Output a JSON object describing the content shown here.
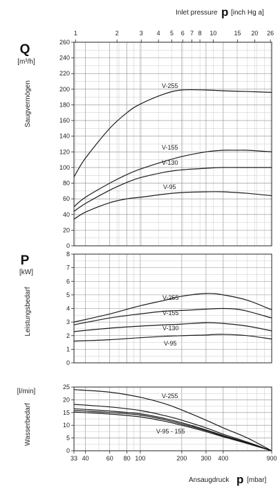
{
  "top_axis": {
    "label": "Inlet pressure",
    "symbol": "p",
    "unit": "[inch Hg a]",
    "ticks": [
      "1",
      "2",
      "3",
      "4",
      "5",
      "6",
      "7",
      "8",
      "10",
      "15",
      "20",
      "26"
    ]
  },
  "bottom_axis": {
    "label": "Ansaugdruck",
    "symbol": "p",
    "unit": "[mbar]",
    "ticks": [
      "33",
      "40",
      "60",
      "80",
      "100",
      "200",
      "300",
      "400",
      "900"
    ],
    "range": [
      33,
      900
    ],
    "scale": "log"
  },
  "chart_data": [
    {
      "type": "line",
      "symbol": "Q",
      "unit": "[m³/h]",
      "ylabel": "Saugvermögen",
      "ylim": [
        0,
        260
      ],
      "yticks": [
        0,
        20,
        40,
        60,
        80,
        100,
        120,
        140,
        160,
        180,
        200,
        220,
        240,
        260
      ],
      "series": [
        {
          "name": "V-255",
          "x": [
            33,
            40,
            60,
            80,
            100,
            150,
            200,
            300,
            400,
            600,
            900
          ],
          "y": [
            88,
            112,
            150,
            170,
            181,
            194,
            199,
            199,
            198,
            197,
            196
          ]
        },
        {
          "name": "V-155",
          "x": [
            33,
            40,
            60,
            80,
            100,
            150,
            200,
            300,
            400,
            500,
            600,
            900
          ],
          "y": [
            50,
            62,
            80,
            91,
            98,
            108,
            114,
            120,
            122,
            122,
            122,
            120
          ]
        },
        {
          "name": "V-130",
          "x": [
            33,
            40,
            60,
            80,
            100,
            150,
            200,
            300,
            400,
            600,
            900
          ],
          "y": [
            44,
            54,
            71,
            81,
            87,
            94,
            97,
            99,
            100,
            100,
            100
          ]
        },
        {
          "name": "V-95",
          "x": [
            33,
            40,
            60,
            80,
            100,
            150,
            200,
            300,
            400,
            600,
            900
          ],
          "y": [
            34,
            43,
            55,
            60,
            62,
            66,
            68,
            69,
            69,
            67,
            64
          ]
        }
      ]
    },
    {
      "type": "line",
      "symbol": "P",
      "unit": "[kW]",
      "ylabel": "Leistungsbedarf",
      "ylim": [
        0,
        8
      ],
      "yticks": [
        0,
        1,
        2,
        3,
        4,
        5,
        6,
        7,
        8
      ],
      "series": [
        {
          "name": "V-255",
          "x": [
            33,
            60,
            100,
            150,
            200,
            300,
            400,
            600,
            900
          ],
          "y": [
            3.0,
            3.6,
            4.2,
            4.6,
            4.9,
            5.1,
            5.0,
            4.6,
            3.9
          ]
        },
        {
          "name": "V-155",
          "x": [
            33,
            60,
            100,
            150,
            200,
            300,
            400,
            500,
            600,
            900
          ],
          "y": [
            2.8,
            3.3,
            3.6,
            3.8,
            3.85,
            3.95,
            4.0,
            3.95,
            3.8,
            3.3
          ]
        },
        {
          "name": "V-130",
          "x": [
            33,
            60,
            100,
            150,
            200,
            300,
            400,
            600,
            900
          ],
          "y": [
            2.3,
            2.55,
            2.7,
            2.8,
            2.85,
            2.95,
            2.9,
            2.7,
            2.35
          ]
        },
        {
          "name": "V-95",
          "x": [
            33,
            60,
            100,
            150,
            200,
            300,
            400,
            600,
            900
          ],
          "y": [
            1.6,
            1.7,
            1.85,
            1.95,
            2.0,
            2.05,
            2.1,
            2.0,
            1.75
          ]
        }
      ]
    },
    {
      "type": "line",
      "symbol": "",
      "unit": "[l/min]",
      "ylabel": "Wasserbedarf",
      "ylim": [
        0,
        25
      ],
      "yticks": [
        0,
        5,
        10,
        15,
        20,
        25
      ],
      "series": [
        {
          "name": "V-255",
          "x": [
            33,
            60,
            100,
            150,
            200,
            300,
            400,
            600,
            900
          ],
          "y": [
            24,
            23,
            21,
            18.5,
            16,
            12,
            9,
            5,
            0
          ]
        },
        {
          "name": "",
          "x": [
            33,
            60,
            100,
            150,
            200,
            300,
            400,
            600,
            900
          ],
          "y": [
            18.2,
            17.2,
            15.8,
            13.8,
            12,
            9,
            6.5,
            3.4,
            0
          ]
        },
        {
          "name": "",
          "x": [
            33,
            60,
            100,
            150,
            200,
            300,
            400,
            600,
            900
          ],
          "y": [
            16.5,
            15.6,
            14.5,
            12.7,
            11,
            8.2,
            6,
            3.1,
            0
          ]
        },
        {
          "name": "",
          "x": [
            33,
            60,
            100,
            150,
            200,
            300,
            400,
            600,
            900
          ],
          "y": [
            15.8,
            15,
            14,
            12.2,
            10.5,
            7.9,
            5.8,
            3,
            0
          ]
        },
        {
          "name": "",
          "x": [
            33,
            60,
            100,
            150,
            200,
            300,
            400,
            600,
            900
          ],
          "y": [
            15.2,
            14.4,
            13.3,
            11.6,
            10,
            7.5,
            5.5,
            2.8,
            0
          ]
        }
      ],
      "group_label": "V-95 - 155"
    }
  ]
}
